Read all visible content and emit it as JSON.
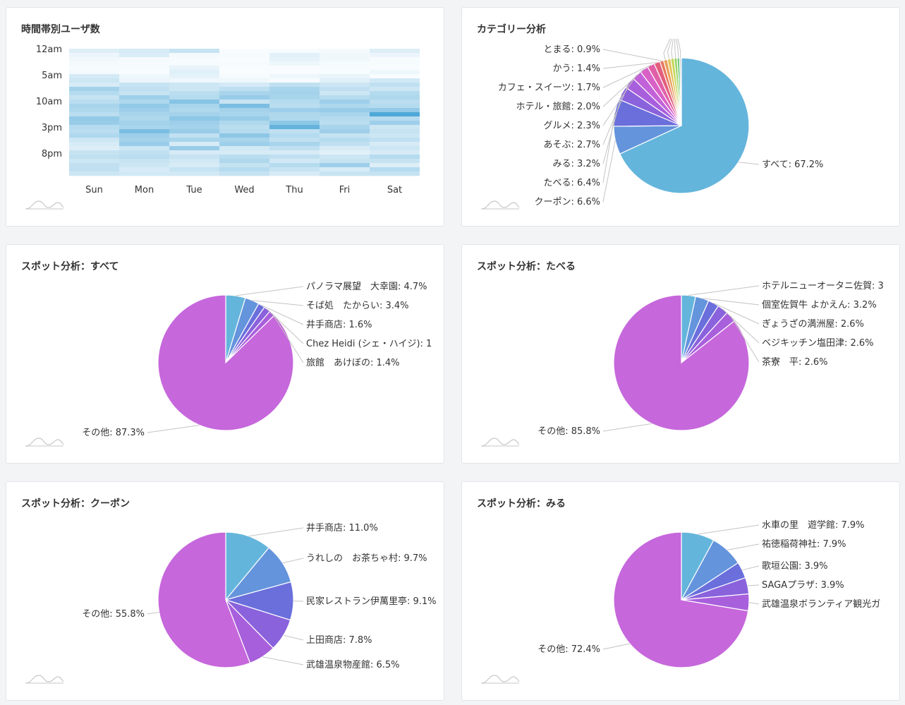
{
  "heatmap": {
    "title": "時間帯別ユーザ数",
    "chart_data": {
      "type": "heatmap",
      "title": "時間帯別ユーザ数",
      "x_categories": [
        "Sun",
        "Mon",
        "Tue",
        "Wed",
        "Thu",
        "Fri",
        "Sat"
      ],
      "y_tick_labels": [
        "12am",
        "5am",
        "10am",
        "3pm",
        "8pm"
      ],
      "color_low": "#ffffff",
      "color_high": "#4ea8d8",
      "values": [
        [
          12,
          14,
          20,
          2,
          3,
          4,
          12
        ],
        [
          7,
          13,
          4,
          3,
          10,
          5,
          7
        ],
        [
          5,
          4,
          3,
          2,
          9,
          5,
          3
        ],
        [
          4,
          3,
          3,
          3,
          6,
          3,
          3
        ],
        [
          3,
          3,
          8,
          2,
          2,
          3,
          2
        ],
        [
          4,
          2,
          11,
          2,
          2,
          2,
          6
        ],
        [
          15,
          6,
          9,
          3,
          6,
          8,
          2
        ],
        [
          18,
          7,
          6,
          6,
          3,
          11,
          16
        ],
        [
          14,
          20,
          18,
          15,
          22,
          18,
          22
        ],
        [
          32,
          22,
          18,
          23,
          30,
          22,
          18
        ],
        [
          26,
          20,
          24,
          30,
          32,
          18,
          26
        ],
        [
          20,
          34,
          26,
          36,
          30,
          26,
          28
        ],
        [
          24,
          28,
          42,
          20,
          26,
          34,
          24
        ],
        [
          30,
          38,
          30,
          46,
          24,
          28,
          26
        ],
        [
          28,
          34,
          28,
          32,
          34,
          36,
          38
        ],
        [
          24,
          30,
          32,
          30,
          28,
          30,
          62
        ],
        [
          38,
          28,
          40,
          36,
          28,
          26,
          26
        ],
        [
          36,
          32,
          34,
          28,
          40,
          24,
          34
        ],
        [
          26,
          30,
          32,
          24,
          54,
          30,
          18
        ],
        [
          24,
          46,
          36,
          26,
          22,
          34,
          20
        ],
        [
          28,
          34,
          22,
          40,
          26,
          20,
          18
        ],
        [
          18,
          32,
          30,
          30,
          22,
          26,
          22
        ],
        [
          14,
          36,
          14,
          34,
          30,
          22,
          14
        ],
        [
          12,
          18,
          36,
          16,
          22,
          14,
          18
        ],
        [
          20,
          22,
          14,
          14,
          14,
          10,
          14
        ],
        [
          22,
          24,
          20,
          24,
          22,
          18,
          26
        ],
        [
          18,
          20,
          16,
          28,
          16,
          20,
          20
        ],
        [
          22,
          18,
          14,
          20,
          26,
          34,
          12
        ],
        [
          22,
          14,
          20,
          26,
          20,
          14,
          26
        ],
        [
          18,
          16,
          16,
          20,
          14,
          20,
          20
        ]
      ]
    }
  },
  "category": {
    "title": "カテゴリー分析",
    "chart_data": {
      "type": "pie",
      "title": "カテゴリー分析",
      "slices": [
        {
          "label": "すべて: 67.2%",
          "value": 67.2,
          "color": "#64b5dc"
        },
        {
          "label": "クーポン: 6.6%",
          "value": 6.6,
          "color": "#6494dc"
        },
        {
          "label": "たべる: 6.4%",
          "value": 6.4,
          "color": "#6a6fdc"
        },
        {
          "label": "みる: 3.2%",
          "value": 3.2,
          "color": "#8a62dc"
        },
        {
          "label": "あそぶ: 2.7%",
          "value": 2.7,
          "color": "#a85fdc"
        },
        {
          "label": "グルメ: 2.3%",
          "value": 2.3,
          "color": "#c262d8"
        },
        {
          "label": "ホテル・旅館: 2.0%",
          "value": 2.0,
          "color": "#d861c6"
        },
        {
          "label": "カフェ・スイーツ: 1.7%",
          "value": 1.7,
          "color": "#e060a8"
        },
        {
          "label": "かう: 1.4%",
          "value": 1.4,
          "color": "#e2607e"
        },
        {
          "label": "とまる: 0.9%",
          "value": 0.9,
          "color": "#e67a5e"
        },
        {
          "label": "",
          "value": 0.9,
          "color": "#e8a05c"
        },
        {
          "label": "",
          "value": 0.8,
          "color": "#e4c25a"
        },
        {
          "label": "",
          "value": 0.8,
          "color": "#c6d65c"
        },
        {
          "label": "",
          "value": 0.7,
          "color": "#9ad466"
        },
        {
          "label": "",
          "value": 0.6,
          "color": "#72cc7e"
        },
        {
          "label": "",
          "value": 0.4,
          "color": "#c8c8c8"
        }
      ]
    }
  },
  "spot_all": {
    "title": "スポット分析：すべて",
    "chart_data": {
      "type": "pie",
      "title": "スポット分析：すべて",
      "slices": [
        {
          "label": "パノラマ展望　大幸園: 4.7%",
          "value": 4.7,
          "color": "#64b5dc"
        },
        {
          "label": "そば処　たからい: 3.4%",
          "value": 3.4,
          "color": "#6494dc"
        },
        {
          "label": "井手商店: 1.6%",
          "value": 1.6,
          "color": "#6a6fdc"
        },
        {
          "label": "Chez Heidi (シェ・ハイジ): 1",
          "value": 1.6,
          "color": "#8a62dc"
        },
        {
          "label": "旅館　あけぼの: 1.4%",
          "value": 1.4,
          "color": "#a85fdc"
        },
        {
          "label": "その他: 87.3%",
          "value": 87.3,
          "color": "#c667dc"
        }
      ]
    }
  },
  "spot_eat": {
    "title": "スポット分析：たべる",
    "chart_data": {
      "type": "pie",
      "title": "スポット分析：たべる",
      "slices": [
        {
          "label": "ホテルニューオータニ佐賀: 3",
          "value": 3.4,
          "color": "#64b5dc"
        },
        {
          "label": "個室佐賀牛 よかえん: 3.2%",
          "value": 3.2,
          "color": "#6494dc"
        },
        {
          "label": "ぎょうざの満洲屋: 2.6%",
          "value": 2.6,
          "color": "#6a6fdc"
        },
        {
          "label": "ベジキッチン塩田津: 2.6%",
          "value": 2.6,
          "color": "#8a62dc"
        },
        {
          "label": "茶寮　平: 2.6%",
          "value": 2.6,
          "color": "#a85fdc"
        },
        {
          "label": "その他: 85.8%",
          "value": 85.8,
          "color": "#c667dc"
        }
      ]
    }
  },
  "spot_coupon": {
    "title": "スポット分析：クーポン",
    "chart_data": {
      "type": "pie",
      "title": "スポット分析：クーポン",
      "slices": [
        {
          "label": "井手商店: 11.0%",
          "value": 11.0,
          "color": "#64b5dc"
        },
        {
          "label": "うれしの　お茶ちゃ村: 9.7%",
          "value": 9.7,
          "color": "#6494dc"
        },
        {
          "label": "民家レストラン伊萬里亭: 9.1%",
          "value": 9.1,
          "color": "#6a6fdc"
        },
        {
          "label": "上田商店: 7.8%",
          "value": 7.8,
          "color": "#8a62dc"
        },
        {
          "label": "武雄温泉物産館: 6.5%",
          "value": 6.5,
          "color": "#a85fdc"
        },
        {
          "label": "その他: 55.8%",
          "value": 55.8,
          "color": "#c667dc"
        }
      ]
    }
  },
  "spot_see": {
    "title": "スポット分析：みる",
    "chart_data": {
      "type": "pie",
      "title": "スポット分析：みる",
      "slices": [
        {
          "label": "水車の里　遊学館: 7.9%",
          "value": 7.9,
          "color": "#64b5dc"
        },
        {
          "label": "祐徳稲荷神社: 7.9%",
          "value": 7.9,
          "color": "#6494dc"
        },
        {
          "label": "歌垣公園: 3.9%",
          "value": 3.9,
          "color": "#6a6fdc"
        },
        {
          "label": "SAGAプラザ: 3.9%",
          "value": 3.9,
          "color": "#8a62dc"
        },
        {
          "label": "武雄温泉ボランティア観光ガ",
          "value": 4.0,
          "color": "#a85fdc"
        },
        {
          "label": "その他: 72.4%",
          "value": 72.4,
          "color": "#c667dc"
        }
      ]
    }
  }
}
